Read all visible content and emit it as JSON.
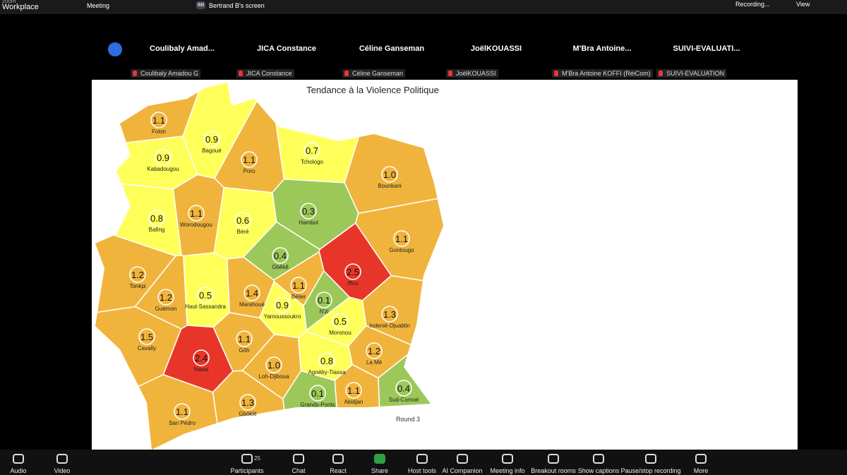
{
  "top_bar": {
    "app": "zoom",
    "product": "Workplace",
    "meeting_tab": "Meeting",
    "share_initials": "BB",
    "share_tab": "Bertrand B's screen",
    "recording": "Recording...",
    "view": "View"
  },
  "participants": {
    "names": [
      "Coulibaly  Amad...",
      "JICA Constance",
      "Céline Ganseman",
      "JoëlKOUASSI",
      "M'Bra  Antoine...",
      "SUIVI-EVALUATI..."
    ],
    "tiles": [
      "Coulibaly Amadou G",
      "JICA Constance",
      "Céline Ganseman",
      "JoëlKOUASSI",
      "M'Bra Antoine KOFFI (RéiCom)",
      "SUIVI-EVALUATION"
    ]
  },
  "map": {
    "title": "Tendance à la Violence Politique",
    "note": "Round 3",
    "regions": [
      {
        "name": "Folon",
        "value": "1.1",
        "color": "#f0b43c"
      },
      {
        "name": "Bagoué",
        "value": "0.9",
        "color": "#ffff5a"
      },
      {
        "name": "Poro",
        "value": "1.1",
        "color": "#f0b43c"
      },
      {
        "name": "Tchologo",
        "value": "0.7",
        "color": "#ffff5a"
      },
      {
        "name": "Bounkani",
        "value": "1.0",
        "color": "#f0b43c"
      },
      {
        "name": "Kabadougou",
        "value": "0.9",
        "color": "#ffff5a"
      },
      {
        "name": "Worodougou",
        "value": "1.1",
        "color": "#f0b43c"
      },
      {
        "name": "Béré",
        "value": "0.6",
        "color": "#ffff5a"
      },
      {
        "name": "Hambol",
        "value": "0.3",
        "color": "#9cc85a"
      },
      {
        "name": "Bafing",
        "value": "0.8",
        "color": "#ffff5a"
      },
      {
        "name": "Gontougo",
        "value": "1.1",
        "color": "#f0b43c"
      },
      {
        "name": "Gbêkê",
        "value": "0.4",
        "color": "#9cc85a"
      },
      {
        "name": "Iffou",
        "value": "2.5",
        "color": "#e8352a"
      },
      {
        "name": "Tonkpi",
        "value": "1.2",
        "color": "#f0b43c"
      },
      {
        "name": "Guémon",
        "value": "1.2",
        "color": "#f0b43c"
      },
      {
        "name": "Haut-Sassandra",
        "value": "0.5",
        "color": "#ffff5a"
      },
      {
        "name": "Marahoué",
        "value": "1.4",
        "color": "#f0b43c"
      },
      {
        "name": "Bélier",
        "value": "1.1",
        "color": "#f0b43c"
      },
      {
        "name": "N'zi",
        "value": "0.1",
        "color": "#9cc85a"
      },
      {
        "name": "Yamoussoukro",
        "value": "0.9",
        "color": "#ffff5a"
      },
      {
        "name": "Moronou",
        "value": "0.5",
        "color": "#ffff5a"
      },
      {
        "name": "Indenié-Djuablin",
        "value": "1.3",
        "color": "#f0b43c"
      },
      {
        "name": "Cavally",
        "value": "1.5",
        "color": "#f0b43c"
      },
      {
        "name": "Nawa",
        "value": "2.4",
        "color": "#e8352a"
      },
      {
        "name": "Gôh",
        "value": "1.1",
        "color": "#f0b43c"
      },
      {
        "name": "Loh-Djiboua",
        "value": "1.0",
        "color": "#f0b43c"
      },
      {
        "name": "Agnéby-Tiassa",
        "value": "0.8",
        "color": "#ffff5a"
      },
      {
        "name": "La Mé",
        "value": "1.2",
        "color": "#f0b43c"
      },
      {
        "name": "Sud-Comoé",
        "value": "0.4",
        "color": "#9cc85a"
      },
      {
        "name": "Grands-Ponts",
        "value": "0.1",
        "color": "#9cc85a"
      },
      {
        "name": "Abidjan",
        "value": "1.1",
        "color": "#f0b43c"
      },
      {
        "name": "Gbôklé",
        "value": "1.3",
        "color": "#f0b43c"
      },
      {
        "name": "San Pédro",
        "value": "1.1",
        "color": "#f0b43c"
      }
    ]
  },
  "toolbar": {
    "participant_count": 25,
    "items": [
      "Audio",
      "Video",
      "Participants",
      "Chat",
      "React",
      "Share",
      "Host tools",
      "AI Companion",
      "Meeting info",
      "Breakout rooms",
      "Show captions",
      "Pause/stop recording",
      "More"
    ]
  }
}
